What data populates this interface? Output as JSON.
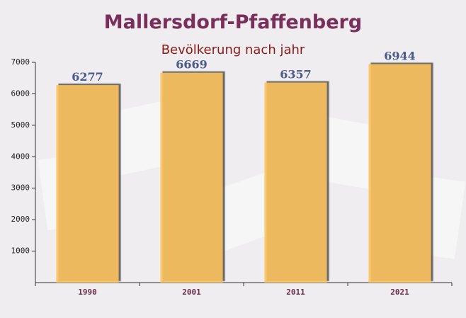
{
  "chart_data": {
    "type": "bar",
    "title": "Mallersdorf-Pfaffenberg",
    "subtitle": "Bevölkerung nach jahr",
    "categories": [
      "1990",
      "2001",
      "2011",
      "2021"
    ],
    "values": [
      6277,
      6669,
      6357,
      6944
    ],
    "color": "#ffc45c",
    "ylim": [
      0,
      7000
    ],
    "yticks": [
      1000,
      2000,
      3000,
      4000,
      5000,
      6000,
      7000
    ],
    "grid": false
  }
}
